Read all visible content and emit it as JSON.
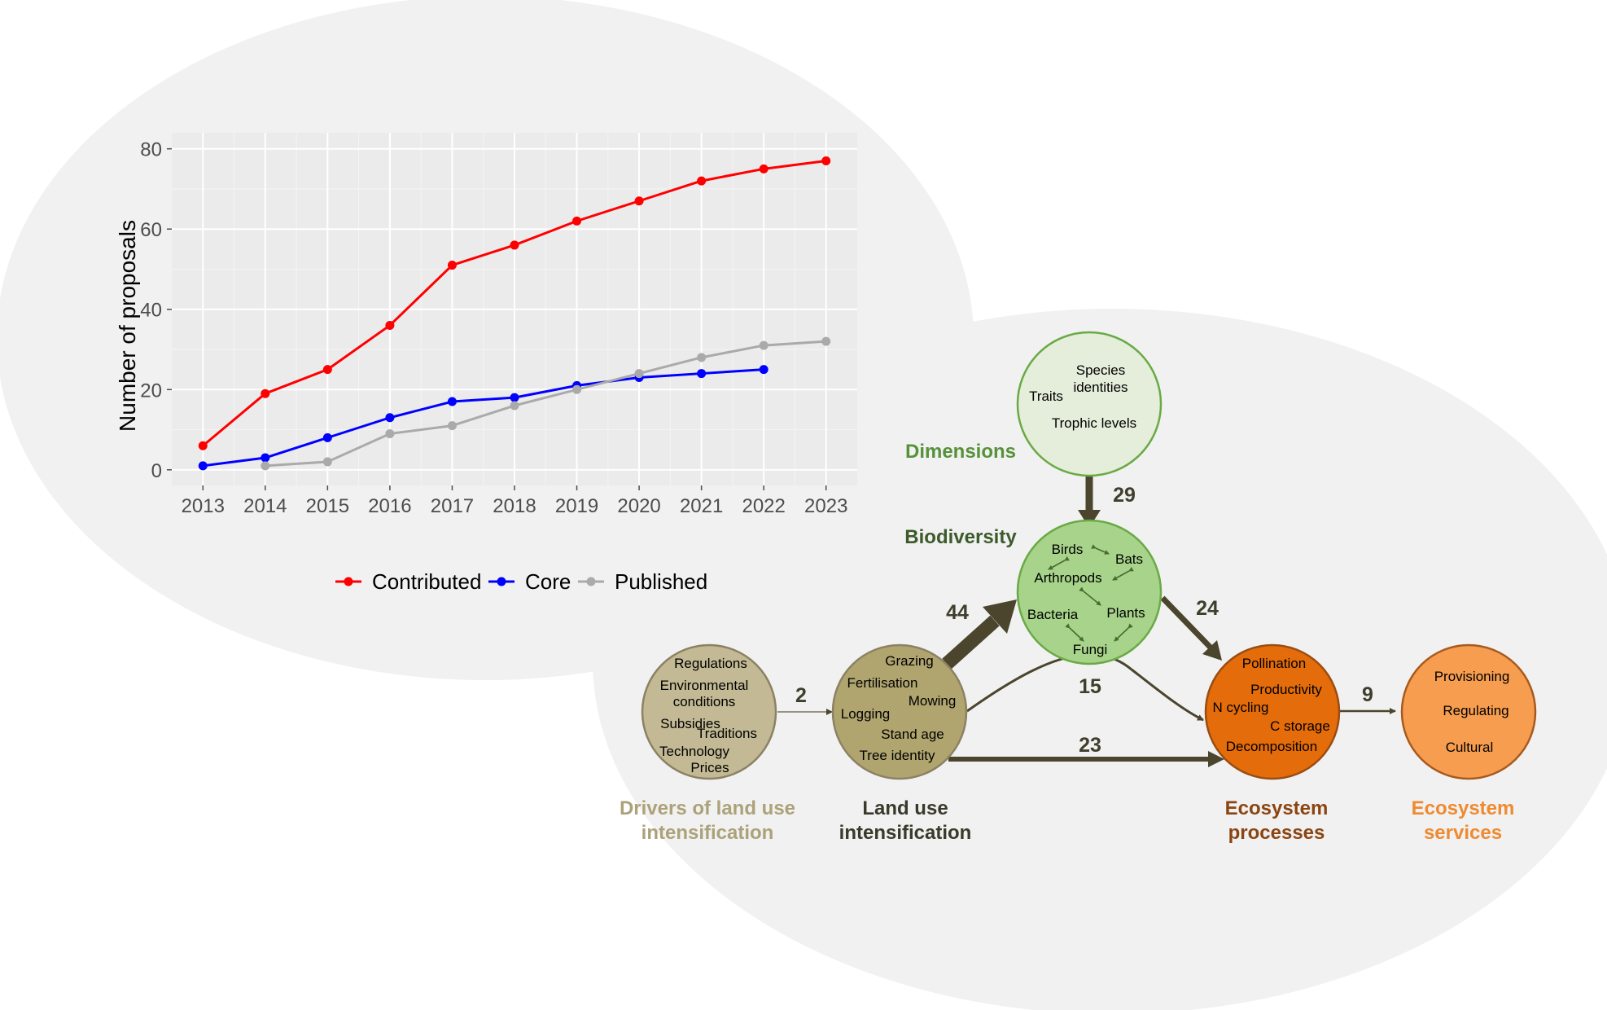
{
  "chart_data": {
    "type": "line",
    "x": [
      2013,
      2014,
      2015,
      2016,
      2017,
      2018,
      2019,
      2020,
      2021,
      2022,
      2023
    ],
    "series": [
      {
        "name": "Contributed",
        "color": "#ff0000",
        "values": [
          6,
          19,
          25,
          36,
          51,
          56,
          62,
          67,
          72,
          75,
          77
        ]
      },
      {
        "name": "Core",
        "color": "#0000ff",
        "values": [
          1,
          3,
          8,
          13,
          17,
          18,
          21,
          23,
          24,
          25,
          null
        ]
      },
      {
        "name": "Published",
        "color": "#aaaaaa",
        "values": [
          null,
          1,
          2,
          9,
          11,
          16,
          20,
          24,
          28,
          31,
          32
        ]
      }
    ],
    "ylabel": "Number of proposals",
    "xlabel": "",
    "ylim": [
      0,
      80
    ],
    "yticks": [
      0,
      20,
      40,
      60,
      80
    ],
    "grid": true,
    "legend_position": "bottom"
  },
  "diagram": {
    "nodes": {
      "drivers": {
        "label": "Drivers of land use intensification",
        "label_lines": [
          "Drivers of land use",
          "intensification"
        ],
        "items": [
          "Regulations",
          "Environmental",
          "conditions",
          "Subsidies",
          "Traditions",
          "Technology",
          "Prices"
        ],
        "fill": "#c3b994",
        "label_color": "#aca27a"
      },
      "landuse": {
        "label": "Land use intensification",
        "label_lines": [
          "Land use",
          "intensification"
        ],
        "items": [
          "Grazing",
          "Fertilisation",
          "Mowing",
          "Logging",
          "Stand age",
          "Tree identity"
        ],
        "fill": "#b0a56f",
        "label_color": "#3a3a2a"
      },
      "dimensions": {
        "label": "Dimensions",
        "items": [
          "Species",
          "identities",
          "Traits",
          "Trophic levels"
        ],
        "fill": "#e4eedb",
        "label_color": "#57913a"
      },
      "biodiversity": {
        "label": "Biodiversity",
        "items": [
          "Birds",
          "Bats",
          "Arthropods",
          "Bacteria",
          "Plants",
          "Fungi"
        ],
        "fill": "#a7d38a",
        "label_color": "#3d5a2a"
      },
      "processes": {
        "label": "Ecosystem processes",
        "label_lines": [
          "Ecosystem",
          "processes"
        ],
        "items": [
          "Pollination",
          "Productivity",
          "N cycling",
          "C storage",
          "Decomposition"
        ],
        "fill": "#e46c0a",
        "label_color": "#8b4513"
      },
      "services": {
        "label": "Ecosystem services",
        "label_lines": [
          "Ecosystem",
          "services"
        ],
        "items": [
          "Provisioning",
          "Regulating",
          "Cultural"
        ],
        "fill": "#f79d4f",
        "label_color": "#ef8a30"
      }
    },
    "edges": [
      {
        "from": "drivers",
        "to": "landuse",
        "value": "2"
      },
      {
        "from": "landuse",
        "to": "biodiversity",
        "value": "44"
      },
      {
        "from": "dimensions",
        "to": "biodiversity",
        "value": "29"
      },
      {
        "from": "biodiversity",
        "to": "processes",
        "value": "24"
      },
      {
        "from": "landuse",
        "to": "processes",
        "value": "15",
        "curved": true
      },
      {
        "from": "landuse",
        "to": "processes",
        "value": "23"
      },
      {
        "from": "processes",
        "to": "services",
        "value": "9"
      }
    ],
    "colors": {
      "arrow": "#4a452c",
      "background_blob": "#f1f1f1"
    }
  }
}
